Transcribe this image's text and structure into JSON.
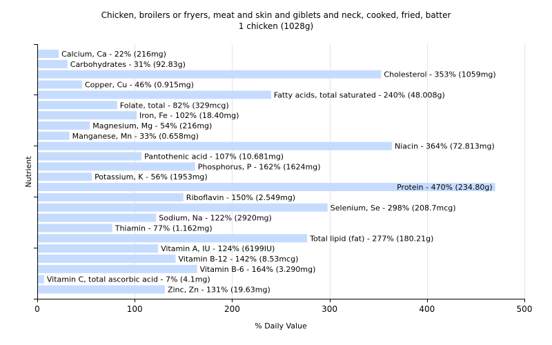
{
  "chart_data": {
    "type": "bar",
    "orientation": "horizontal",
    "title_line1": "Chicken, broilers or fryers, meat and skin and giblets and neck, cooked, fried, batter",
    "title_line2": "1 chicken (1028g)",
    "xlabel": "% Daily Value",
    "ylabel": "Nutrient",
    "xlim": [
      0,
      500
    ],
    "xticks": [
      0,
      100,
      200,
      300,
      400,
      500
    ],
    "grid": true,
    "bar_color": "#c6dcff",
    "categories": [
      "Calcium, Ca",
      "Carbohydrates",
      "Cholesterol",
      "Copper, Cu",
      "Fatty acids, total saturated",
      "Folate, total",
      "Iron, Fe",
      "Magnesium, Mg",
      "Manganese, Mn",
      "Niacin",
      "Pantothenic acid",
      "Phosphorus, P",
      "Potassium, K",
      "Protein",
      "Riboflavin",
      "Selenium, Se",
      "Sodium, Na",
      "Thiamin",
      "Total lipid (fat)",
      "Vitamin A, IU",
      "Vitamin B-12",
      "Vitamin B-6",
      "Vitamin C, total ascorbic acid",
      "Zinc, Zn"
    ],
    "values": [
      22,
      31,
      353,
      46,
      240,
      82,
      102,
      54,
      33,
      364,
      107,
      162,
      56,
      470,
      150,
      298,
      122,
      77,
      277,
      124,
      142,
      164,
      7,
      131
    ],
    "labels": [
      "Calcium, Ca - 22% (216mg)",
      "Carbohydrates - 31% (92.83g)",
      "Cholesterol - 353% (1059mg)",
      "Copper, Cu - 46% (0.915mg)",
      "Fatty acids, total saturated - 240% (48.008g)",
      "Folate, total - 82% (329mcg)",
      "Iron, Fe - 102% (18.40mg)",
      "Magnesium, Mg - 54% (216mg)",
      "Manganese, Mn - 33% (0.658mg)",
      "Niacin - 364% (72.813mg)",
      "Pantothenic acid - 107% (10.681mg)",
      "Phosphorus, P - 162% (1624mg)",
      "Potassium, K - 56% (1953mg)",
      "Protein - 470% (234.80g)",
      "Riboflavin - 150% (2.549mg)",
      "Selenium, Se - 298% (208.7mcg)",
      "Sodium, Na - 122% (2920mg)",
      "Thiamin - 77% (1.162mg)",
      "Total lipid (fat) - 277% (180.21g)",
      "Vitamin A, IU - 124% (6199IU)",
      "Vitamin B-12 - 142% (8.53mcg)",
      "Vitamin B-6 - 164% (3.290mg)",
      "Vitamin C, total ascorbic acid - 7% (4.1mg)",
      "Zinc, Zn - 131% (19.63mg)"
    ]
  }
}
